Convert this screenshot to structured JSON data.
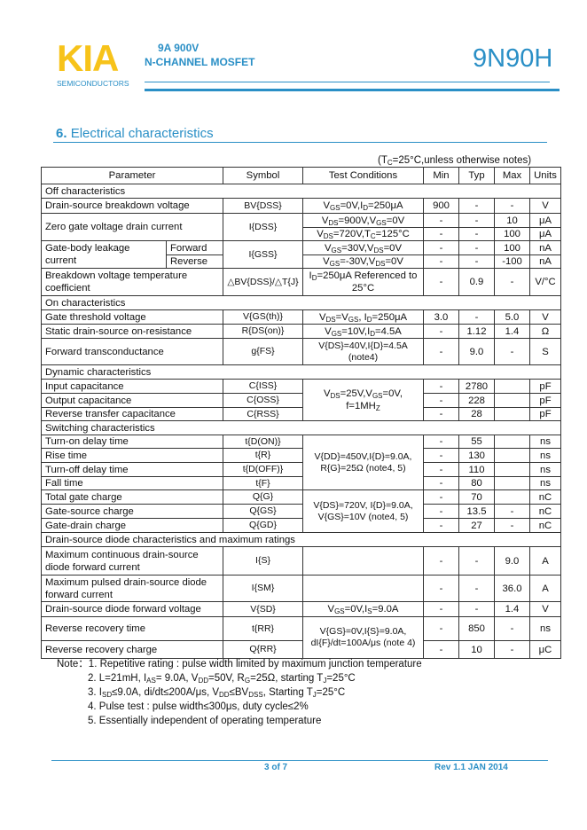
{
  "header": {
    "logo": "KIA",
    "logo_sub": "SEMICONDUCTORS",
    "rating": "9A 900V",
    "type": "N-CHANNEL MOSFET",
    "part_number": "9N90H",
    "brand_color": "#2a8fc6",
    "logo_color": "#f7c31a"
  },
  "section": {
    "number": "6.",
    "title": "Electrical characteristics"
  },
  "conditions_note": "(T{C}=25°C,unless otherwise notes)",
  "table": {
    "columns": [
      "Parameter",
      "Symbol",
      "Test Conditions",
      "Min",
      "Typ",
      "Max",
      "Units"
    ],
    "sections": [
      {
        "title": "Off characteristics",
        "rows": [
          {
            "parameter": "Drain-source breakdown voltage",
            "symbol": "BV{DSS}",
            "conditions": "V{GS}=0V,I{D}=250μA",
            "min": "900",
            "typ": "-",
            "max": "-",
            "unit": "V"
          },
          {
            "parameter": "Zero gate voltage drain current",
            "symbol": "I{DSS}",
            "conditions": "V{DS}=900V,V{GS}=0V",
            "min": "-",
            "typ": "-",
            "max": "10",
            "unit": "μA"
          },
          {
            "conditions": "V{DS}=720V,T{C}=125°C",
            "min": "-",
            "typ": "-",
            "max": "100",
            "unit": "μA"
          },
          {
            "parameter": "Gate-body leakage current",
            "sub": "Forward",
            "symbol": "I{GSS}",
            "conditions": "V{GS}=30V,V{DS}=0V",
            "min": "-",
            "typ": "-",
            "max": "100",
            "unit": "nA"
          },
          {
            "sub": "Reverse",
            "conditions": "V{GS}=-30V,V{DS}=0V",
            "min": "-",
            "typ": "-",
            "max": "-100",
            "unit": "nA"
          },
          {
            "parameter": "Breakdown voltage temperature coefficient",
            "symbol": "△BV{DSS}/△T{J}",
            "conditions": "I{D}=250μA Referenced to 25°C",
            "min": "-",
            "typ": "0.9",
            "max": "-",
            "unit": "V/°C"
          }
        ]
      },
      {
        "title": "On characteristics",
        "rows": [
          {
            "parameter": "Gate threshold voltage",
            "symbol": "V{GS(th)}",
            "conditions": "V{DS}=V{GS}, I{D}=250μA",
            "min": "3.0",
            "typ": "-",
            "max": "5.0",
            "unit": "V"
          },
          {
            "parameter": "Static drain-source on-resistance",
            "symbol": "R{DS(on)}",
            "conditions": "V{GS}=10V,I{D}=4.5A",
            "min": "-",
            "typ": "1.12",
            "max": "1.4",
            "unit": "Ω"
          },
          {
            "parameter": "Forward transconductance",
            "symbol": "g{FS}",
            "conditions": "V{DS}=40V,I{D}=4.5A (note4)",
            "min": "-",
            "typ": "9.0",
            "max": "-",
            "unit": "S"
          }
        ]
      },
      {
        "title": "Dynamic characteristics",
        "rows": [
          {
            "parameter": "Input capacitance",
            "symbol": "C{ISS}",
            "conditions": "V{DS}=25V,V{GS}=0V, f=1MH{Z}",
            "min": "-",
            "typ": "2780",
            "max": "",
            "unit": "pF"
          },
          {
            "parameter": "Output capacitance",
            "symbol": "C{OSS}",
            "min": "-",
            "typ": "228",
            "max": "",
            "unit": "pF"
          },
          {
            "parameter": "Reverse transfer capacitance",
            "symbol": "C{RSS}",
            "min": "-",
            "typ": "28",
            "max": "",
            "unit": "pF"
          }
        ]
      },
      {
        "title": "Switching characteristics",
        "rows": [
          {
            "parameter": "Turn-on delay time",
            "symbol": "t{D(ON)}",
            "conditions": "V{DD}=450V,I{D}=9.0A, R{G}=25Ω (note4, 5)",
            "min": "-",
            "typ": "55",
            "max": "",
            "unit": "ns"
          },
          {
            "parameter": "Rise time",
            "symbol": "t{R}",
            "min": "-",
            "typ": "130",
            "max": "",
            "unit": "ns"
          },
          {
            "parameter": "Turn-off delay time",
            "symbol": "t{D(OFF)}",
            "min": "-",
            "typ": "110",
            "max": "",
            "unit": "ns"
          },
          {
            "parameter": "Fall time",
            "symbol": "t{F}",
            "min": "-",
            "typ": "80",
            "max": "",
            "unit": "ns"
          },
          {
            "parameter": "Total gate charge",
            "symbol": "Q{G}",
            "conditions": "V{DS}=720V, I{D}=9.0A, V{GS}=10V (note4, 5)",
            "min": "-",
            "typ": "70",
            "max": "",
            "unit": "nC"
          },
          {
            "parameter": "Gate-source charge",
            "symbol": "Q{GS}",
            "min": "-",
            "typ": "13.5",
            "max": "-",
            "unit": "nC"
          },
          {
            "parameter": "Gate-drain charge",
            "symbol": "Q{GD}",
            "min": "-",
            "typ": "27",
            "max": "-",
            "unit": "nC"
          }
        ]
      },
      {
        "title": "Drain-source diode characteristics and maximum ratings",
        "rows": [
          {
            "parameter": "Maximum continuous drain-source diode forward current",
            "symbol": "I{S}",
            "conditions": "",
            "min": "-",
            "typ": "-",
            "max": "9.0",
            "unit": "A"
          },
          {
            "parameter": "Maximum pulsed drain-source diode forward current",
            "symbol": "I{SM}",
            "conditions": "",
            "min": "-",
            "typ": "-",
            "max": "36.0",
            "unit": "A"
          },
          {
            "parameter": "Drain-source diode forward voltage",
            "symbol": "V{SD}",
            "conditions": "V{GS}=0V,I{S}=9.0A",
            "min": "-",
            "typ": "-",
            "max": "1.4",
            "unit": "V"
          },
          {
            "parameter": "Reverse recovery time",
            "symbol": "t{RR}",
            "conditions": "V{GS}=0V,I{S}=9.0A, dI{F}/dt=100A/μs (note 4)",
            "min": "-",
            "typ": "850",
            "max": "-",
            "unit": "ns"
          },
          {
            "parameter": "Reverse recovery charge",
            "symbol": "Q{RR}",
            "min": "-",
            "typ": "10",
            "max": "-",
            "unit": "μC"
          }
        ]
      }
    ]
  },
  "notes": {
    "label": "Note：",
    "items": [
      "1. Repetitive rating : pulse width limited by maximum junction temperature",
      "2. L=21mH, I{AS}= 9.0A, V{DD}=50V, R{G}=25Ω, starting T{J}=25°C",
      "3. I{SD}≤9.0A, di/dt≤200A/μs, V{DD}≤BV{DSS}, Starting T{J}=25°C",
      "4. Pulse test : pulse width≤300μs, duty cycle≤2%",
      "5. Essentially independent of operating temperature"
    ]
  },
  "footer": {
    "page": "3 of 7",
    "revision": "Rev 1.1 JAN 2014"
  }
}
